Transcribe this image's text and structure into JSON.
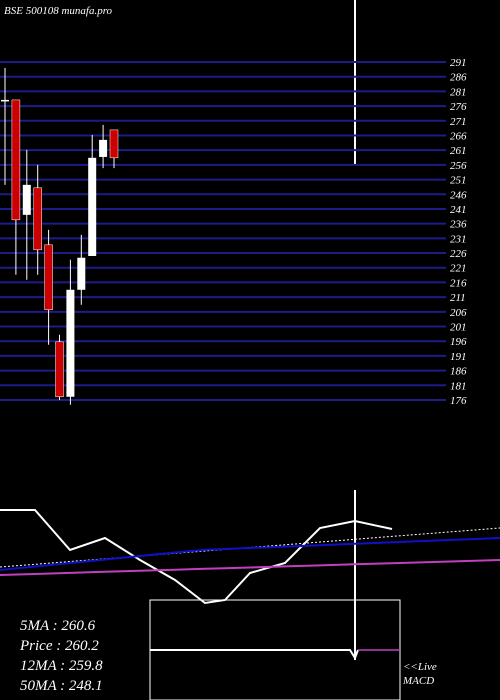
{
  "chart_data": [
    {
      "type": "candlestick",
      "title": "BSE 500108 munafa.pro",
      "open": [
        278.1,
        278.1,
        239.0,
        248.2,
        228.8,
        195.8,
        177.1,
        213.5,
        225.0,
        258.7,
        267.9
      ],
      "high": [
        289.0,
        278.1,
        261.1,
        256.0,
        233.9,
        198.2,
        223.7,
        232.2,
        266.2,
        269.6,
        267.9
      ],
      "low": [
        249.2,
        218.6,
        216.9,
        218.6,
        194.8,
        176.0,
        174.4,
        208.4,
        225.0,
        254.9,
        254.9
      ],
      "close": [
        278.1,
        237.3,
        249.2,
        227.1,
        206.7,
        177.1,
        213.5,
        224.4,
        258.4,
        264.5,
        258.4
      ],
      "up_color": "#ffffff",
      "down_color": "#cc0000",
      "grid_color": "#1c1c8a",
      "ylim": [
        176,
        291
      ],
      "yticks": [
        291,
        286,
        281,
        276,
        271,
        266,
        261,
        256,
        251,
        246,
        241,
        236,
        231,
        226,
        221,
        216,
        211,
        206,
        201,
        196,
        191,
        186,
        181,
        176
      ],
      "grid": true
    },
    {
      "type": "line",
      "x": [
        0,
        35,
        70,
        105,
        140,
        175,
        205,
        225,
        250,
        285,
        320,
        355,
        392,
        500
      ],
      "xlim": [
        0,
        500
      ],
      "ylim": [
        0,
        200
      ],
      "series": [
        {
          "name": "5MA : 260.6",
          "color": "#ffffff",
          "values": [
            190,
            190,
            150,
            162,
            140,
            120,
            97,
            100,
            127,
            137,
            172,
            179,
            171,
            null
          ]
        },
        {
          "name": "Price  : 260.2",
          "color": "#ffffff",
          "dash": true,
          "values": [
            133,
            135.7,
            138.5,
            141.2,
            143.9,
            146.7,
            149,
            150.6,
            152.5,
            155.2,
            158,
            160.7,
            163.6,
            172
          ]
        },
        {
          "name": "12MA : 259.8",
          "color": "#1010c8",
          "values": [
            130,
            133.5,
            137,
            140.5,
            144,
            147.5,
            150.2,
            151,
            152,
            153.4,
            154.8,
            156.2,
            157.7,
            162
          ]
        },
        {
          "name": "50MA : 248.1",
          "color": "#c040c0",
          "values": [
            125,
            126,
            127.1,
            128.2,
            129.2,
            130.3,
            131.2,
            131.8,
            132.5,
            133.6,
            134.6,
            135.7,
            136.8,
            140
          ]
        }
      ],
      "annotations": [
        "<<Live",
        "MACD"
      ]
    }
  ]
}
